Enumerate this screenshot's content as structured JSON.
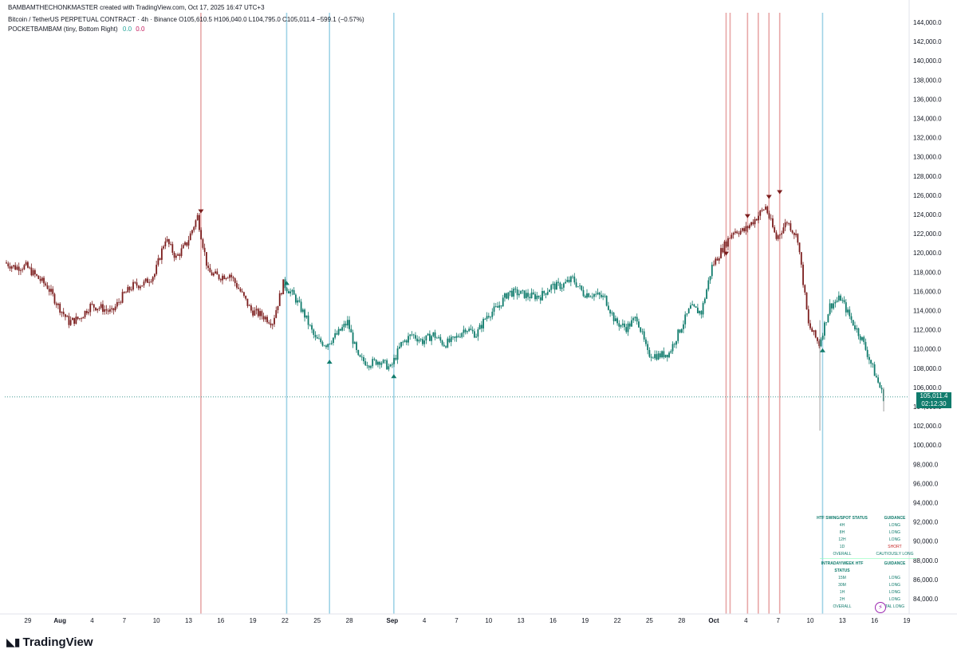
{
  "header": {
    "author_line": "BAMBAMTHECHONKMASTER created with TradingView.com, Oct 17, 2025 16:47 UTC+3",
    "symbol_line": "Bitcoin / TetherUS PERPETUAL CONTRACT · 4h · Binance  O105,610.5  H106,040.0  L104,795.0  C105,011.4  −599.1 (−0.57%)",
    "indicator_name": "POCKETBAMBAM (tiny, Bottom Right)",
    "indicator_v1": "0.0",
    "indicator_v2": "0.0"
  },
  "price_tag": {
    "price": "105,011.4",
    "countdown": "02:12:30"
  },
  "brand": {
    "name": "TradingView"
  },
  "colors": {
    "bull_teal": "#0f7b6c",
    "bear_maroon": "#7b1d1d",
    "red_vline": "#e8a7a7",
    "blue_vline": "#9fd3e6",
    "last_price_line": "#2a8c85"
  },
  "status_table": {
    "htf_header": "HTF SWING/SPOT STATUS",
    "guidance_header": "GUIDANCE",
    "htf_rows": [
      {
        "tf": "4H",
        "g": "LONG"
      },
      {
        "tf": "8H",
        "g": "LONG"
      },
      {
        "tf": "12H",
        "g": "LONG"
      },
      {
        "tf": "1D",
        "g": "SHORT"
      },
      {
        "tf": "OVERALL",
        "g": "CAUTIOUSLY LONG"
      }
    ],
    "intraday_header": "INTRADAY/WEEK HTF STATUS",
    "guidance_header_2": "GUIDANCE",
    "intraday_rows": [
      {
        "tf": "15M",
        "g": "LONG"
      },
      {
        "tf": "30M",
        "g": "LONG"
      },
      {
        "tf": "1H",
        "g": "LONG"
      },
      {
        "tf": "2H",
        "g": "LONG"
      },
      {
        "tf": "OVERALL",
        "g": "TAL LONG"
      }
    ]
  },
  "chart_data": {
    "type": "line",
    "title": "Bitcoin / TetherUS PERPETUAL CONTRACT · 4h · Binance",
    "timeframe": "4h",
    "xlabel": "",
    "ylabel": "",
    "ylim": [
      82000,
      145000
    ],
    "grid": false,
    "y_ticks": [
      "144,000.0",
      "142,000.0",
      "140,000.0",
      "138,000.0",
      "136,000.0",
      "134,000.0",
      "132,000.0",
      "130,000.0",
      "128,000.0",
      "126,000.0",
      "124,000.0",
      "122,000.0",
      "120,000.0",
      "118,000.0",
      "116,000.0",
      "114,000.0",
      "112,000.0",
      "110,000.0",
      "108,000.0",
      "106,000.0",
      "104,000.0",
      "102,000.0",
      "100,000.0",
      "98,000.0",
      "96,000.0",
      "94,000.0",
      "92,000.0",
      "90,000.0",
      "88,000.0",
      "86,000.0",
      "84,000.0"
    ],
    "x_ticks": [
      "29",
      "Aug",
      "4",
      "7",
      "10",
      "13",
      "16",
      "19",
      "22",
      "25",
      "28",
      "Sep",
      "4",
      "7",
      "10",
      "13",
      "16",
      "19",
      "22",
      "25",
      "28",
      "Oct",
      "4",
      "7",
      "10",
      "13",
      "16",
      "19"
    ],
    "x_tick_bold": [
      "Aug",
      "Sep",
      "Oct"
    ],
    "series": [
      {
        "values_by_day": [
          {
            "d": "Jul 27",
            "v": 119000
          },
          {
            "d": "Jul 28",
            "v": 118500
          },
          {
            "d": "Jul 29",
            "v": 118600
          },
          {
            "d": "Jul 30",
            "v": 117500
          },
          {
            "d": "Jul 31",
            "v": 116500
          },
          {
            "d": "Aug 1",
            "v": 114500
          },
          {
            "d": "Aug 2",
            "v": 112800
          },
          {
            "d": "Aug 3",
            "v": 113200
          },
          {
            "d": "Aug 4",
            "v": 114500
          },
          {
            "d": "Aug 5",
            "v": 114300
          },
          {
            "d": "Aug 6",
            "v": 113800
          },
          {
            "d": "Aug 7",
            "v": 115500
          },
          {
            "d": "Aug 8",
            "v": 116600
          },
          {
            "d": "Aug 9",
            "v": 116800
          },
          {
            "d": "Aug 10",
            "v": 117800
          },
          {
            "d": "Aug 11",
            "v": 121500
          },
          {
            "d": "Aug 12",
            "v": 119500
          },
          {
            "d": "Aug 13",
            "v": 121000
          },
          {
            "d": "Aug 14",
            "v": 123800
          },
          {
            "d": "Aug 15",
            "v": 118000
          },
          {
            "d": "Aug 16",
            "v": 117500
          },
          {
            "d": "Aug 17",
            "v": 117800
          },
          {
            "d": "Aug 18",
            "v": 116000
          },
          {
            "d": "Aug 19",
            "v": 114000
          },
          {
            "d": "Aug 20",
            "v": 113500
          },
          {
            "d": "Aug 21",
            "v": 112800
          },
          {
            "d": "Aug 22",
            "v": 116800
          },
          {
            "d": "Aug 23",
            "v": 115500
          },
          {
            "d": "Aug 24",
            "v": 113500
          },
          {
            "d": "Aug 25",
            "v": 111000
          },
          {
            "d": "Aug 26",
            "v": 110500
          },
          {
            "d": "Aug 27",
            "v": 111500
          },
          {
            "d": "Aug 28",
            "v": 112800
          },
          {
            "d": "Aug 29",
            "v": 109000
          },
          {
            "d": "Aug 30",
            "v": 108500
          },
          {
            "d": "Aug 31",
            "v": 108800
          },
          {
            "d": "Sep 1",
            "v": 108000
          },
          {
            "d": "Sep 2",
            "v": 110500
          },
          {
            "d": "Sep 3",
            "v": 111500
          },
          {
            "d": "Sep 4",
            "v": 110800
          },
          {
            "d": "Sep 5",
            "v": 111500
          },
          {
            "d": "Sep 6",
            "v": 110500
          },
          {
            "d": "Sep 7",
            "v": 111000
          },
          {
            "d": "Sep 8",
            "v": 112200
          },
          {
            "d": "Sep 9",
            "v": 111500
          },
          {
            "d": "Sep 10",
            "v": 113500
          },
          {
            "d": "Sep 11",
            "v": 114300
          },
          {
            "d": "Sep 12",
            "v": 115900
          },
          {
            "d": "Sep 13",
            "v": 115800
          },
          {
            "d": "Sep 14",
            "v": 115500
          },
          {
            "d": "Sep 15",
            "v": 115500
          },
          {
            "d": "Sep 16",
            "v": 116500
          },
          {
            "d": "Sep 17",
            "v": 116600
          },
          {
            "d": "Sep 18",
            "v": 117300
          },
          {
            "d": "Sep 19",
            "v": 115800
          },
          {
            "d": "Sep 20",
            "v": 115700
          },
          {
            "d": "Sep 21",
            "v": 115300
          },
          {
            "d": "Sep 22",
            "v": 112800
          },
          {
            "d": "Sep 23",
            "v": 112200
          },
          {
            "d": "Sep 24",
            "v": 113300
          },
          {
            "d": "Sep 25",
            "v": 109500
          },
          {
            "d": "Sep 26",
            "v": 109300
          },
          {
            "d": "Sep 27",
            "v": 109600
          },
          {
            "d": "Sep 28",
            "v": 112000
          },
          {
            "d": "Sep 29",
            "v": 114300
          },
          {
            "d": "Sep 30",
            "v": 113800
          },
          {
            "d": "Oct 1",
            "v": 118600
          },
          {
            "d": "Oct 2",
            "v": 120500
          },
          {
            "d": "Oct 3",
            "v": 122300
          },
          {
            "d": "Oct 4",
            "v": 122300
          },
          {
            "d": "Oct 5",
            "v": 123500
          },
          {
            "d": "Oct 6",
            "v": 124800
          },
          {
            "d": "Oct 7",
            "v": 121500
          },
          {
            "d": "Oct 8",
            "v": 123300
          },
          {
            "d": "Oct 9",
            "v": 121500
          },
          {
            "d": "Oct 10",
            "v": 112500
          },
          {
            "d": "Oct 11",
            "v": 110500
          },
          {
            "d": "Oct 12",
            "v": 114500
          },
          {
            "d": "Oct 13",
            "v": 115300
          },
          {
            "d": "Oct 14",
            "v": 113000
          },
          {
            "d": "Oct 15",
            "v": 111000
          },
          {
            "d": "Oct 16",
            "v": 108000
          },
          {
            "d": "Oct 17",
            "v": 105011
          }
        ]
      }
    ],
    "last_price": 105011.4,
    "vertical_markers": [
      {
        "date": "Aug 14",
        "color": "red"
      },
      {
        "date": "Aug 22",
        "color": "blue"
      },
      {
        "date": "Aug 26",
        "color": "blue"
      },
      {
        "date": "Sep 1",
        "color": "blue"
      },
      {
        "date": "Oct 2",
        "color": "red"
      },
      {
        "date": "Oct 2",
        "color": "red"
      },
      {
        "date": "Oct 4",
        "color": "red"
      },
      {
        "date": "Oct 5",
        "color": "red"
      },
      {
        "date": "Oct 6",
        "color": "red"
      },
      {
        "date": "Oct 7",
        "color": "red"
      },
      {
        "date": "Oct 11",
        "color": "blue"
      }
    ],
    "signal_markers": [
      {
        "date": "Aug 14",
        "type": "down",
        "price": 124200
      },
      {
        "date": "Aug 26",
        "type": "up",
        "price": 108800
      },
      {
        "date": "Sep 1",
        "type": "up",
        "price": 107300
      },
      {
        "date": "Oct 2",
        "type": "down",
        "price": 119800
      },
      {
        "date": "Oct 4",
        "type": "down",
        "price": 123700
      },
      {
        "date": "Oct 6",
        "type": "down",
        "price": 125700
      },
      {
        "date": "Oct 7",
        "type": "down",
        "price": 126200
      },
      {
        "date": "Oct 11",
        "type": "up",
        "price": 110000
      },
      {
        "date": "Aug 22",
        "type": "up",
        "price": 117000
      }
    ]
  }
}
